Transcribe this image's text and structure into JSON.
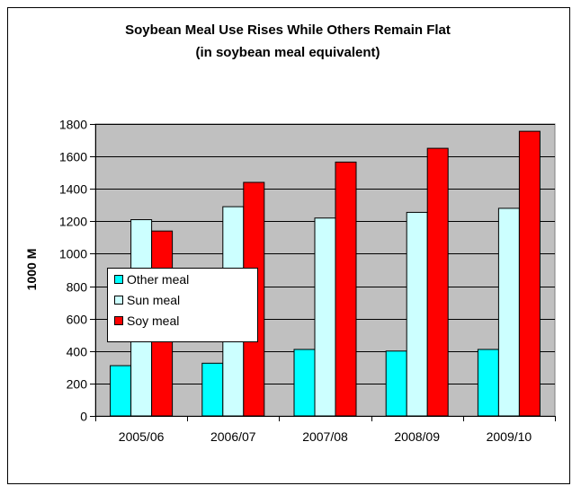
{
  "chart_data": {
    "type": "bar",
    "title": "Soybean Meal Use Rises While Others Remain Flat",
    "subtitle": "(in soybean meal equivalent)",
    "ylabel": "1000 M",
    "xlabel": "",
    "ylim": [
      0,
      1800
    ],
    "yticks": [
      0,
      200,
      400,
      600,
      800,
      1000,
      1200,
      1400,
      1600,
      1800
    ],
    "categories": [
      "2005/06",
      "2006/07",
      "2007/08",
      "2008/09",
      "2009/10"
    ],
    "series": [
      {
        "name": "Other meal",
        "color": "#00ffff",
        "values": [
          310,
          325,
          410,
          400,
          410
        ]
      },
      {
        "name": "Sun meal",
        "color": "#ccffff",
        "values": [
          1210,
          1290,
          1220,
          1255,
          1280
        ]
      },
      {
        "name": "Soy meal",
        "color": "#ff0000",
        "values": [
          1140,
          1440,
          1565,
          1650,
          1755
        ]
      }
    ],
    "grid": true,
    "plot_background": "#c0c0c0",
    "legend_position": "left-middle"
  }
}
